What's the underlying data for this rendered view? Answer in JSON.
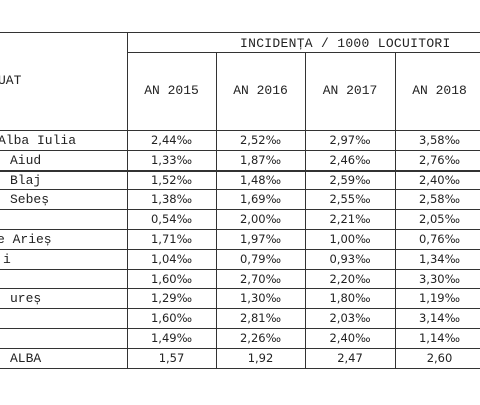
{
  "table": {
    "super_header": "INCIDENȚA / 1000 LOCUITORI",
    "label_header": "UAT",
    "columns": [
      "AN 2015",
      "AN 2016",
      "AN 2017",
      "AN 2018"
    ],
    "rows": [
      {
        "label": "Alba Iulia",
        "cells": [
          "2,44‰",
          "2,52‰",
          "2,97‰",
          "3,58‰"
        ]
      },
      {
        "label": "Aiud",
        "cells": [
          "1,33‰",
          "1,87‰",
          "2,46‰",
          "2,76‰"
        ]
      },
      {
        "label": "Blaj",
        "cells": [
          "1,52‰",
          "1,48‰",
          "2,59‰",
          "2,40‰"
        ]
      },
      {
        "label": "Sebeș",
        "cells": [
          "1,38‰",
          "1,69‰",
          "2,55‰",
          "2,58‰"
        ]
      },
      {
        "label": null,
        "cells": [
          "0,54‰",
          "2,00‰",
          "2,21‰",
          "2,05‰"
        ]
      },
      {
        "label": "e Arieș",
        "cells": [
          "1,71‰",
          "1,97‰",
          "1,00‰",
          "0,76‰"
        ]
      },
      {
        "label": "i",
        "cells": [
          "1,04‰",
          "0,79‰",
          "0,93‰",
          "1,34‰"
        ]
      },
      {
        "label": null,
        "cells": [
          "1,60‰",
          "2,70‰",
          "2,20‰",
          "3,30‰"
        ]
      },
      {
        "label": "ureș",
        "cells": [
          "1,29‰",
          "1,30‰",
          "1,80‰",
          "1,19‰"
        ]
      },
      {
        "label": null,
        "cells": [
          "1,60‰",
          "2,81‰",
          "2,03‰",
          "3,14‰"
        ]
      },
      {
        "label": null,
        "cells": [
          "1,49‰",
          "2,26‰",
          "2,40‰",
          "1,14‰"
        ]
      },
      {
        "label": "ALBA",
        "cells": [
          "1,57",
          "1,92",
          "2,47",
          "2,60"
        ]
      }
    ]
  }
}
